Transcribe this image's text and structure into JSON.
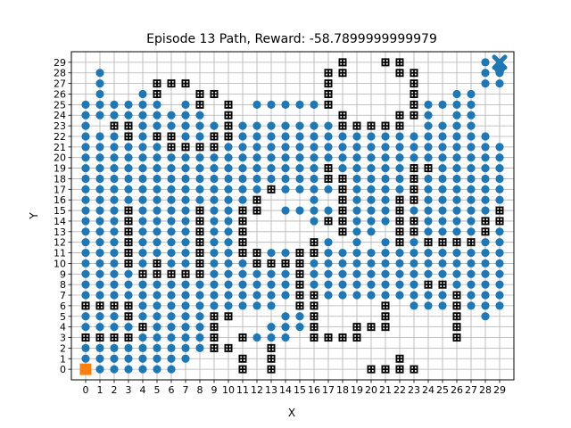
{
  "chart_data": {
    "type": "scatter",
    "title": "Episode 13 Path, Reward: -58.7899999999979",
    "xlabel": "X",
    "ylabel": "Y",
    "xlim": [
      -1,
      30
    ],
    "ylim": [
      -1,
      30
    ],
    "xticks": [
      0,
      1,
      2,
      3,
      4,
      5,
      6,
      7,
      8,
      9,
      10,
      11,
      12,
      13,
      14,
      15,
      16,
      17,
      18,
      19,
      20,
      21,
      22,
      23,
      24,
      25,
      26,
      27,
      28,
      29
    ],
    "yticks": [
      0,
      1,
      2,
      3,
      4,
      5,
      6,
      7,
      8,
      9,
      10,
      11,
      12,
      13,
      14,
      15,
      16,
      17,
      18,
      19,
      20,
      21,
      22,
      23,
      24,
      25,
      26,
      27,
      28,
      29
    ],
    "grid": true,
    "colors": {
      "path": "#1f77b4",
      "start": "#ff7f0e",
      "goal": "#1f77b4",
      "obstacle": "#000000",
      "grid": "#b0b0b0"
    },
    "start": {
      "x": 0,
      "y": 0,
      "marker": "square"
    },
    "goal": {
      "x": 29,
      "y": 29,
      "marker": "x"
    },
    "obstacles": [
      {
        "x": 21,
        "y": 29
      },
      {
        "x": 22,
        "y": 29
      },
      {
        "x": 18,
        "y": 29
      },
      {
        "x": 17,
        "y": 28
      },
      {
        "x": 18,
        "y": 28
      },
      {
        "x": 22,
        "y": 28
      },
      {
        "x": 23,
        "y": 28
      },
      {
        "x": 5,
        "y": 27
      },
      {
        "x": 6,
        "y": 27
      },
      {
        "x": 7,
        "y": 27
      },
      {
        "x": 17,
        "y": 27
      },
      {
        "x": 23,
        "y": 27
      },
      {
        "x": 5,
        "y": 26
      },
      {
        "x": 8,
        "y": 26
      },
      {
        "x": 9,
        "y": 26
      },
      {
        "x": 17,
        "y": 26
      },
      {
        "x": 23,
        "y": 26
      },
      {
        "x": 8,
        "y": 25
      },
      {
        "x": 10,
        "y": 25
      },
      {
        "x": 17,
        "y": 25
      },
      {
        "x": 23,
        "y": 25
      },
      {
        "x": 10,
        "y": 24
      },
      {
        "x": 18,
        "y": 24
      },
      {
        "x": 22,
        "y": 24
      },
      {
        "x": 23,
        "y": 24
      },
      {
        "x": 2,
        "y": 23
      },
      {
        "x": 3,
        "y": 23
      },
      {
        "x": 10,
        "y": 23
      },
      {
        "x": 18,
        "y": 23
      },
      {
        "x": 19,
        "y": 23
      },
      {
        "x": 20,
        "y": 23
      },
      {
        "x": 21,
        "y": 23
      },
      {
        "x": 22,
        "y": 23
      },
      {
        "x": 3,
        "y": 22
      },
      {
        "x": 5,
        "y": 22
      },
      {
        "x": 6,
        "y": 22
      },
      {
        "x": 9,
        "y": 22
      },
      {
        "x": 10,
        "y": 22
      },
      {
        "x": 6,
        "y": 21
      },
      {
        "x": 7,
        "y": 21
      },
      {
        "x": 8,
        "y": 21
      },
      {
        "x": 9,
        "y": 21
      },
      {
        "x": 17,
        "y": 19
      },
      {
        "x": 23,
        "y": 19
      },
      {
        "x": 24,
        "y": 19
      },
      {
        "x": 17,
        "y": 18
      },
      {
        "x": 18,
        "y": 18
      },
      {
        "x": 23,
        "y": 18
      },
      {
        "x": 13,
        "y": 17
      },
      {
        "x": 18,
        "y": 17
      },
      {
        "x": 23,
        "y": 17
      },
      {
        "x": 12,
        "y": 16
      },
      {
        "x": 18,
        "y": 16
      },
      {
        "x": 22,
        "y": 16
      },
      {
        "x": 23,
        "y": 16
      },
      {
        "x": 3,
        "y": 15
      },
      {
        "x": 8,
        "y": 15
      },
      {
        "x": 11,
        "y": 15
      },
      {
        "x": 12,
        "y": 15
      },
      {
        "x": 18,
        "y": 15
      },
      {
        "x": 22,
        "y": 15
      },
      {
        "x": 29,
        "y": 15
      },
      {
        "x": 3,
        "y": 14
      },
      {
        "x": 8,
        "y": 14
      },
      {
        "x": 11,
        "y": 14
      },
      {
        "x": 17,
        "y": 14
      },
      {
        "x": 18,
        "y": 14
      },
      {
        "x": 22,
        "y": 14
      },
      {
        "x": 23,
        "y": 14
      },
      {
        "x": 28,
        "y": 14
      },
      {
        "x": 29,
        "y": 14
      },
      {
        "x": 3,
        "y": 13
      },
      {
        "x": 8,
        "y": 13
      },
      {
        "x": 11,
        "y": 13
      },
      {
        "x": 18,
        "y": 13
      },
      {
        "x": 22,
        "y": 13
      },
      {
        "x": 23,
        "y": 13
      },
      {
        "x": 28,
        "y": 13
      },
      {
        "x": 3,
        "y": 12
      },
      {
        "x": 8,
        "y": 12
      },
      {
        "x": 11,
        "y": 12
      },
      {
        "x": 16,
        "y": 12
      },
      {
        "x": 22,
        "y": 12
      },
      {
        "x": 24,
        "y": 12
      },
      {
        "x": 25,
        "y": 12
      },
      {
        "x": 26,
        "y": 12
      },
      {
        "x": 27,
        "y": 12
      },
      {
        "x": 3,
        "y": 11
      },
      {
        "x": 8,
        "y": 11
      },
      {
        "x": 11,
        "y": 11
      },
      {
        "x": 12,
        "y": 11
      },
      {
        "x": 15,
        "y": 11
      },
      {
        "x": 16,
        "y": 11
      },
      {
        "x": 3,
        "y": 10
      },
      {
        "x": 5,
        "y": 10
      },
      {
        "x": 8,
        "y": 10
      },
      {
        "x": 12,
        "y": 10
      },
      {
        "x": 13,
        "y": 10
      },
      {
        "x": 14,
        "y": 10
      },
      {
        "x": 15,
        "y": 10
      },
      {
        "x": 4,
        "y": 9
      },
      {
        "x": 5,
        "y": 9
      },
      {
        "x": 6,
        "y": 9
      },
      {
        "x": 7,
        "y": 9
      },
      {
        "x": 8,
        "y": 9
      },
      {
        "x": 15,
        "y": 9
      },
      {
        "x": 15,
        "y": 8
      },
      {
        "x": 24,
        "y": 8
      },
      {
        "x": 25,
        "y": 8
      },
      {
        "x": 15,
        "y": 7
      },
      {
        "x": 16,
        "y": 7
      },
      {
        "x": 26,
        "y": 7
      },
      {
        "x": 0,
        "y": 6
      },
      {
        "x": 1,
        "y": 6
      },
      {
        "x": 2,
        "y": 6
      },
      {
        "x": 3,
        "y": 6
      },
      {
        "x": 15,
        "y": 6
      },
      {
        "x": 16,
        "y": 6
      },
      {
        "x": 21,
        "y": 6
      },
      {
        "x": 26,
        "y": 6
      },
      {
        "x": 3,
        "y": 5
      },
      {
        "x": 9,
        "y": 5
      },
      {
        "x": 10,
        "y": 5
      },
      {
        "x": 16,
        "y": 5
      },
      {
        "x": 21,
        "y": 5
      },
      {
        "x": 26,
        "y": 5
      },
      {
        "x": 4,
        "y": 4
      },
      {
        "x": 9,
        "y": 4
      },
      {
        "x": 16,
        "y": 4
      },
      {
        "x": 19,
        "y": 4
      },
      {
        "x": 20,
        "y": 4
      },
      {
        "x": 21,
        "y": 4
      },
      {
        "x": 26,
        "y": 4
      },
      {
        "x": 0,
        "y": 3
      },
      {
        "x": 1,
        "y": 3
      },
      {
        "x": 2,
        "y": 3
      },
      {
        "x": 3,
        "y": 3
      },
      {
        "x": 9,
        "y": 3
      },
      {
        "x": 11,
        "y": 3
      },
      {
        "x": 16,
        "y": 3
      },
      {
        "x": 17,
        "y": 3
      },
      {
        "x": 18,
        "y": 3
      },
      {
        "x": 19,
        "y": 3
      },
      {
        "x": 26,
        "y": 3
      },
      {
        "x": 9,
        "y": 2
      },
      {
        "x": 10,
        "y": 2
      },
      {
        "x": 13,
        "y": 2
      },
      {
        "x": 11,
        "y": 1
      },
      {
        "x": 13,
        "y": 1
      },
      {
        "x": 22,
        "y": 1
      },
      {
        "x": 11,
        "y": 0
      },
      {
        "x": 13,
        "y": 0
      },
      {
        "x": 20,
        "y": 0
      },
      {
        "x": 21,
        "y": 0
      },
      {
        "x": 22,
        "y": 0
      },
      {
        "x": 23,
        "y": 0
      }
    ],
    "path_empty_cells": {
      "29": [
        0,
        1,
        2,
        3,
        4,
        5,
        6,
        7,
        8,
        9,
        10,
        11,
        12,
        13,
        14,
        15,
        16,
        17,
        18,
        19,
        20,
        21,
        22,
        23,
        24,
        25,
        26,
        27
      ],
      "28": [
        0,
        2,
        3,
        4,
        5,
        6,
        7,
        8,
        9,
        10,
        11,
        12,
        13,
        14,
        15,
        16,
        19,
        20,
        21,
        24,
        25,
        26,
        27
      ],
      "27": [
        0,
        2,
        3,
        4,
        8,
        9,
        10,
        11,
        12,
        13,
        14,
        15,
        16,
        18,
        19,
        20,
        21,
        22,
        24,
        25,
        26,
        27
      ],
      "26": [
        0,
        2,
        3,
        6,
        7,
        10,
        11,
        12,
        13,
        14,
        15,
        16,
        18,
        19,
        20,
        21,
        22,
        24,
        25,
        28,
        29
      ],
      "25": [
        6,
        9,
        11,
        18,
        19,
        20,
        21,
        22,
        28,
        29
      ],
      "24": [
        9,
        11,
        12,
        13,
        14,
        15,
        16,
        17,
        19,
        20,
        21,
        25,
        28,
        29
      ],
      "23": [
        1,
        23,
        28,
        29
      ],
      "22": [
        29
      ],
      "16": [
        13,
        14,
        15,
        17
      ],
      "15": [
        13
      ],
      "14": [
        12,
        13,
        14,
        15
      ],
      "13": [
        12,
        13,
        14,
        15,
        16,
        17,
        21
      ],
      "12": [
        12,
        13,
        14,
        15,
        18,
        20
      ],
      "6": [
        14,
        17,
        18,
        19,
        20,
        22
      ],
      "5": [
        11,
        12,
        13,
        17,
        18,
        19,
        20,
        22,
        23,
        24,
        25,
        27,
        29
      ],
      "4": [
        10,
        11,
        12,
        17,
        18,
        22,
        23,
        24,
        25,
        27,
        28,
        29
      ],
      "3": [
        10,
        15,
        20,
        21,
        22,
        23,
        24,
        25,
        27,
        28,
        29
      ],
      "2": [
        11,
        12,
        14,
        15,
        16,
        17,
        18,
        19,
        20,
        21,
        22,
        23,
        24,
        25,
        26,
        27,
        28,
        29
      ],
      "1": [
        8,
        9,
        10,
        12,
        14,
        15,
        16,
        17,
        18,
        19,
        20,
        21,
        23,
        24,
        25,
        26,
        27,
        28,
        29
      ],
      "0": [
        7,
        8,
        9,
        10,
        12,
        14,
        15,
        16,
        17,
        18,
        19,
        24,
        25,
        26,
        27,
        28,
        29
      ]
    }
  }
}
